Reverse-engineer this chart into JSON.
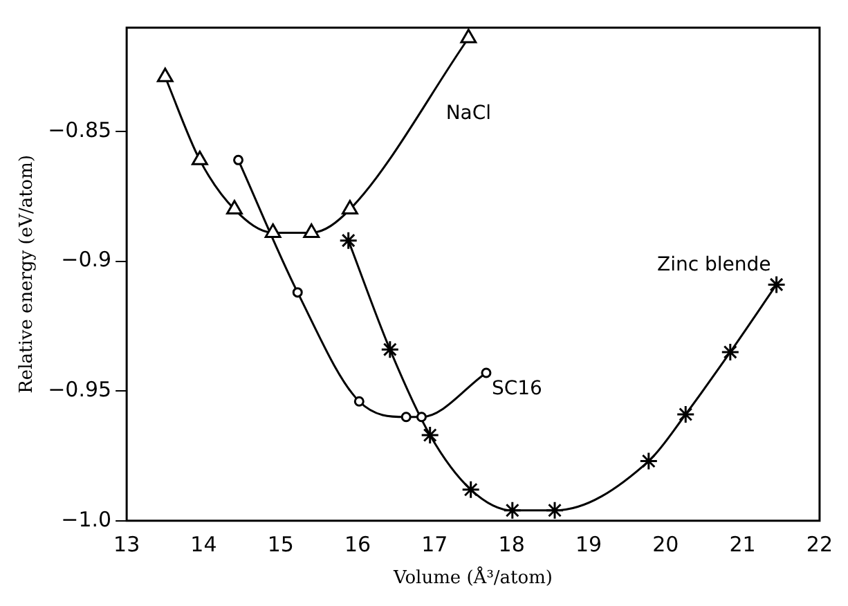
{
  "chart_data": {
    "type": "line",
    "xlabel": "Volume (Å³/atom)",
    "ylabel": "Relative energy (eV/atom)",
    "xlim": [
      13,
      22
    ],
    "xticks": [
      13,
      14,
      15,
      16,
      17,
      18,
      19,
      20,
      21,
      22
    ],
    "ylim": [
      -1.0,
      -0.81
    ],
    "yticks": [
      {
        "value": -1.0,
        "label": "−1.0"
      },
      {
        "value": -0.95,
        "label": "−0.95"
      },
      {
        "value": -0.9,
        "label": "−0.9"
      },
      {
        "value": -0.85,
        "label": "−0.85"
      }
    ],
    "grid": false,
    "legend": false,
    "series": [
      {
        "name": "NaCl",
        "color": "#000000",
        "marker": "triangle",
        "x": [
          13.5,
          13.95,
          14.4,
          14.9,
          15.4,
          15.9,
          17.44
        ],
        "values": [
          -0.829,
          -0.861,
          -0.88,
          -0.889,
          -0.889,
          -0.88,
          -0.814
        ]
      },
      {
        "name": "SC16",
        "color": "#000000",
        "marker": "circle",
        "x": [
          14.45,
          15.22,
          16.02,
          16.63,
          16.83,
          17.67
        ],
        "values": [
          -0.861,
          -0.912,
          -0.954,
          -0.96,
          -0.96,
          -0.943
        ]
      },
      {
        "name": "Zinc blende",
        "color": "#000000",
        "marker": "cross",
        "x": [
          15.88,
          16.42,
          16.94,
          17.47,
          18.01,
          18.56,
          19.78,
          20.26,
          20.84,
          21.44
        ],
        "values": [
          -0.892,
          -0.934,
          -0.967,
          -0.988,
          -0.996,
          -0.996,
          -0.977,
          -0.959,
          -0.935,
          -0.909
        ]
      }
    ]
  }
}
